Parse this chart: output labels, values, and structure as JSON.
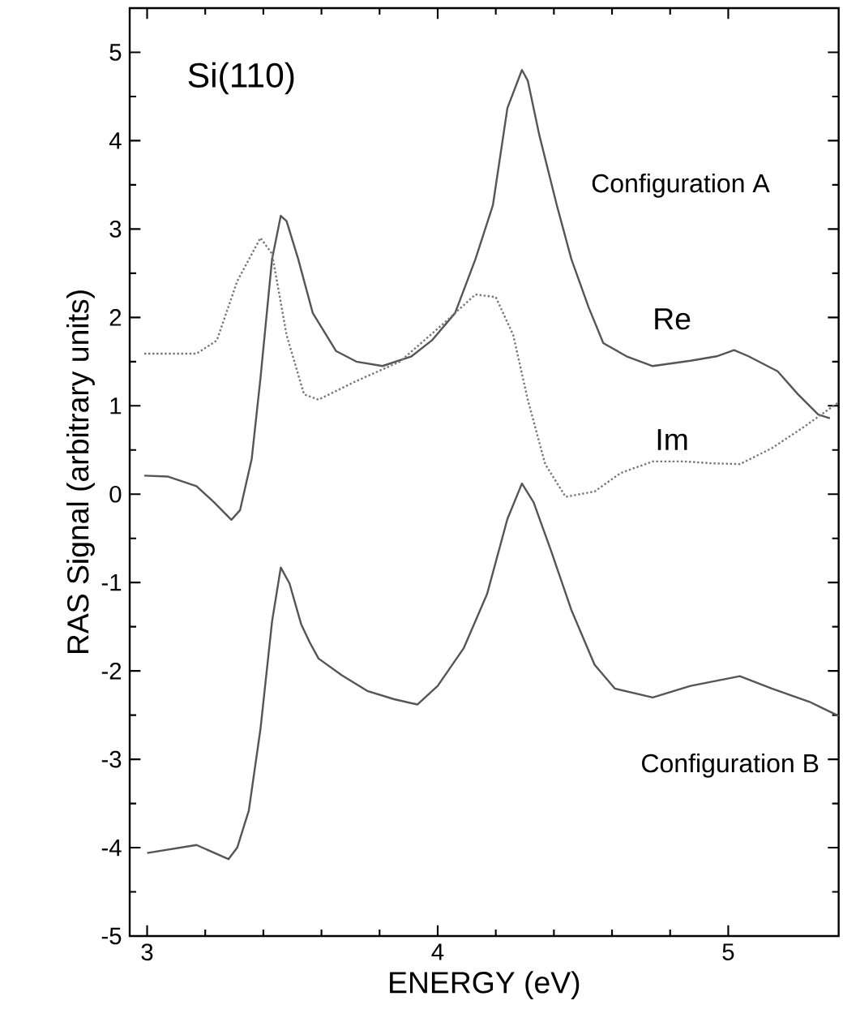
{
  "chart_data": {
    "type": "line",
    "xlabel": "ENERGY (eV)",
    "ylabel": "RAS Signal (arbitrary units)",
    "xlim": [
      2.94,
      5.38
    ],
    "ylim": [
      -5,
      5.5
    ],
    "xticks": [
      3,
      4,
      5
    ],
    "yticks": [
      -5,
      -4,
      -3,
      -2,
      -1,
      0,
      1,
      2,
      3,
      4,
      5
    ],
    "grid": false,
    "marker": "none",
    "series": [
      {
        "name": "Re",
        "color": "#555555",
        "line_style": "solid",
        "x": [
          2.99,
          3.07,
          3.17,
          3.23,
          3.29,
          3.32,
          3.36,
          3.39,
          3.43,
          3.46,
          3.48,
          3.52,
          3.57,
          3.65,
          3.72,
          3.81,
          3.91,
          3.98,
          4.06,
          4.13,
          4.19,
          4.24,
          4.29,
          4.31,
          4.35,
          4.41,
          4.46,
          4.52,
          4.57,
          4.65,
          4.74,
          4.87,
          4.96,
          5.02,
          5.07,
          5.17,
          5.24,
          5.31,
          5.35
        ],
        "values": [
          0.21,
          0.2,
          0.09,
          -0.09,
          -0.29,
          -0.18,
          0.4,
          1.31,
          2.66,
          3.15,
          3.09,
          2.66,
          2.05,
          1.62,
          1.5,
          1.45,
          1.56,
          1.74,
          2.05,
          2.66,
          3.27,
          4.37,
          4.8,
          4.68,
          4.06,
          3.27,
          2.66,
          2.11,
          1.71,
          1.56,
          1.45,
          1.51,
          1.56,
          1.63,
          1.56,
          1.39,
          1.13,
          0.9,
          0.86
        ]
      },
      {
        "name": "Im",
        "color": "#777777",
        "line_style": "dotted",
        "x": [
          2.99,
          3.17,
          3.24,
          3.31,
          3.39,
          3.43,
          3.48,
          3.54,
          3.59,
          3.72,
          3.87,
          4.02,
          4.13,
          4.2,
          4.26,
          4.31,
          4.37,
          4.44,
          4.54,
          4.63,
          4.74,
          4.85,
          4.94,
          5.04,
          5.15,
          5.26,
          5.38
        ],
        "values": [
          1.59,
          1.59,
          1.74,
          2.41,
          2.9,
          2.72,
          1.8,
          1.13,
          1.07,
          1.28,
          1.5,
          1.93,
          2.26,
          2.23,
          1.8,
          1.07,
          0.34,
          -0.03,
          0.03,
          0.24,
          0.37,
          0.37,
          0.35,
          0.34,
          0.52,
          0.76,
          1.04
        ]
      },
      {
        "color": "#555555",
        "line_style": "solid",
        "x": [
          3.0,
          3.17,
          3.28,
          3.31,
          3.35,
          3.39,
          3.43,
          3.46,
          3.49,
          3.53,
          3.56,
          3.59,
          3.67,
          3.76,
          3.85,
          3.93,
          4.0,
          4.09,
          4.17,
          4.24,
          4.29,
          4.33,
          4.39,
          4.46,
          4.54,
          4.61,
          4.74,
          4.87,
          5.04,
          5.15,
          5.28,
          5.38
        ],
        "values": [
          -4.06,
          -3.97,
          -4.13,
          -4.0,
          -3.58,
          -2.66,
          -1.44,
          -0.83,
          -1.01,
          -1.47,
          -1.68,
          -1.86,
          -2.05,
          -2.23,
          -2.32,
          -2.38,
          -2.17,
          -1.74,
          -1.13,
          -0.28,
          0.12,
          -0.09,
          -0.64,
          -1.31,
          -1.93,
          -2.2,
          -2.3,
          -2.17,
          -2.06,
          -2.2,
          -2.35,
          -2.51
        ]
      }
    ],
    "annotations": [
      "Si(110)",
      "Configuration A",
      "Configuration B"
    ]
  }
}
